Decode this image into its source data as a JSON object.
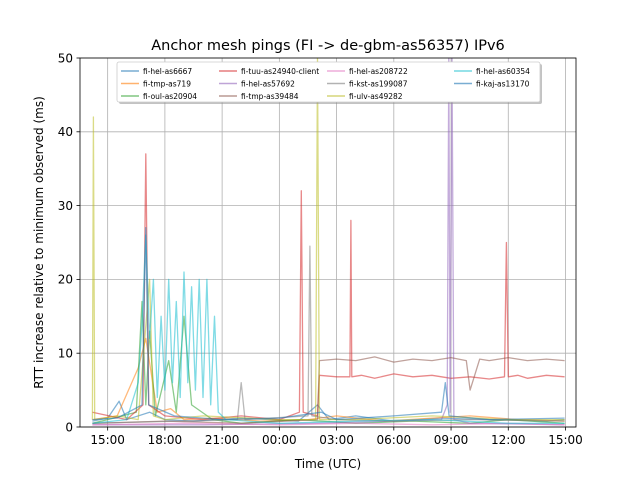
{
  "chart_data": {
    "type": "line",
    "title": "Anchor mesh pings (FI -> de-gbm-as56357) IPv6",
    "xlabel": "Time (UTC)",
    "ylabel": "RTT increase relative to minimum observed (ms)",
    "x_unit": "hours since 12:00 UTC (day 1)",
    "xlim": [
      1.55,
      27.55
    ],
    "ylim": [
      0,
      50
    ],
    "grid": true,
    "legend_position": "top-center",
    "x_ticks": [
      {
        "value": 3,
        "label": "15:00"
      },
      {
        "value": 6,
        "label": "18:00"
      },
      {
        "value": 9,
        "label": "21:00"
      },
      {
        "value": 12,
        "label": "00:00"
      },
      {
        "value": 15,
        "label": "03:00"
      },
      {
        "value": 18,
        "label": "06:00"
      },
      {
        "value": 21,
        "label": "09:00"
      },
      {
        "value": 24,
        "label": "12:00"
      },
      {
        "value": 27,
        "label": "15:00"
      }
    ],
    "y_ticks": [
      {
        "value": 0,
        "label": "0"
      },
      {
        "value": 10,
        "label": "10"
      },
      {
        "value": 20,
        "label": "20"
      },
      {
        "value": 30,
        "label": "30"
      },
      {
        "value": 40,
        "label": "40"
      },
      {
        "value": 50,
        "label": "50"
      }
    ],
    "series": [
      {
        "name": "fi-hel-as6667",
        "color": "#1f77b4",
        "points": [
          [
            2.2,
            0.8
          ],
          [
            3.0,
            1.2
          ],
          [
            3.6,
            3.5
          ],
          [
            4.0,
            1.0
          ],
          [
            5.2,
            2.0
          ],
          [
            6.0,
            1.0
          ],
          [
            7.5,
            0.8
          ],
          [
            10.0,
            1.2
          ],
          [
            13.0,
            0.8
          ],
          [
            14.0,
            3.0
          ],
          [
            14.6,
            1.0
          ],
          [
            16.0,
            1.5
          ],
          [
            18.0,
            0.8
          ],
          [
            20.5,
            1.2
          ],
          [
            23.0,
            1.0
          ],
          [
            26.0,
            0.8
          ],
          [
            26.95,
            1.0
          ]
        ]
      },
      {
        "name": "fi-tmp-as719",
        "color": "#ff7f0e",
        "points": [
          [
            2.2,
            1.0
          ],
          [
            3.5,
            1.5
          ],
          [
            4.6,
            8.0
          ],
          [
            5.0,
            12.0
          ],
          [
            5.6,
            2.0
          ],
          [
            6.3,
            2.5
          ],
          [
            7.0,
            1.0
          ],
          [
            8.5,
            1.2
          ],
          [
            11.0,
            0.8
          ],
          [
            13.5,
            1.0
          ],
          [
            15.0,
            1.5
          ],
          [
            17.5,
            0.8
          ],
          [
            20.0,
            1.2
          ],
          [
            22.0,
            1.5
          ],
          [
            24.5,
            1.0
          ],
          [
            26.95,
            0.8
          ]
        ]
      },
      {
        "name": "fi-oul-as20904",
        "color": "#2ca02c",
        "points": [
          [
            2.2,
            0.5
          ],
          [
            3.0,
            1.0
          ],
          [
            4.5,
            2.0
          ],
          [
            4.8,
            17.0
          ],
          [
            5.0,
            3.0
          ],
          [
            5.2,
            13.0
          ],
          [
            5.5,
            1.5
          ],
          [
            6.2,
            9.0
          ],
          [
            6.6,
            2.0
          ],
          [
            7.0,
            15.0
          ],
          [
            7.4,
            3.0
          ],
          [
            8.5,
            1.0
          ],
          [
            10.0,
            0.5
          ],
          [
            13.0,
            1.0
          ],
          [
            16.0,
            0.5
          ],
          [
            19.0,
            0.8
          ],
          [
            22.0,
            0.5
          ],
          [
            24.0,
            1.0
          ],
          [
            26.95,
            0.5
          ]
        ]
      },
      {
        "name": "fi-tuu-as24940-client",
        "color": "#d62728",
        "points": [
          [
            2.2,
            2.0
          ],
          [
            4.0,
            1.0
          ],
          [
            4.85,
            3.0
          ],
          [
            5.0,
            37.0
          ],
          [
            5.15,
            3.0
          ],
          [
            6.0,
            1.5
          ],
          [
            8.0,
            1.0
          ],
          [
            10.0,
            1.5
          ],
          [
            12.0,
            1.0
          ],
          [
            13.05,
            2.0
          ],
          [
            13.15,
            32.0
          ],
          [
            13.25,
            2.0
          ],
          [
            14.0,
            1.5
          ],
          [
            14.1,
            7.0
          ],
          [
            15.0,
            6.8
          ],
          [
            15.7,
            6.8
          ],
          [
            15.75,
            28.0
          ],
          [
            15.8,
            6.8
          ],
          [
            16.3,
            7.0
          ],
          [
            17.0,
            6.6
          ],
          [
            18.0,
            7.2
          ],
          [
            19.0,
            6.8
          ],
          [
            20.0,
            7.0
          ],
          [
            21.0,
            6.6
          ],
          [
            22.0,
            6.8
          ],
          [
            23.0,
            6.5
          ],
          [
            23.8,
            6.8
          ],
          [
            23.9,
            25.0
          ],
          [
            24.0,
            6.8
          ],
          [
            24.5,
            7.0
          ],
          [
            25.0,
            6.6
          ],
          [
            26.0,
            7.0
          ],
          [
            26.95,
            6.8
          ]
        ]
      },
      {
        "name": "fi-hel-as57692",
        "color": "#9467bd",
        "points": [
          [
            2.2,
            0.3
          ],
          [
            8.0,
            0.3
          ],
          [
            14.0,
            0.5
          ],
          [
            20.5,
            1.0
          ],
          [
            20.8,
            3.0
          ],
          [
            20.88,
            50.0
          ],
          [
            20.95,
            2.0
          ],
          [
            21.05,
            50.0
          ],
          [
            21.15,
            1.0
          ],
          [
            22.0,
            0.5
          ],
          [
            26.95,
            0.3
          ]
        ]
      },
      {
        "name": "fi-tmp-as39484",
        "color": "#8c564b",
        "points": [
          [
            2.2,
            0.5
          ],
          [
            6.0,
            0.8
          ],
          [
            10.0,
            0.5
          ],
          [
            14.0,
            1.0
          ],
          [
            14.1,
            9.0
          ],
          [
            15.0,
            9.2
          ],
          [
            16.0,
            9.0
          ],
          [
            17.0,
            9.5
          ],
          [
            18.0,
            8.8
          ],
          [
            19.0,
            9.2
          ],
          [
            20.0,
            9.0
          ],
          [
            21.0,
            9.4
          ],
          [
            21.8,
            9.0
          ],
          [
            22.0,
            5.0
          ],
          [
            22.5,
            9.2
          ],
          [
            23.0,
            9.0
          ],
          [
            24.0,
            9.4
          ],
          [
            25.0,
            9.0
          ],
          [
            26.0,
            9.2
          ],
          [
            26.95,
            9.0
          ]
        ]
      },
      {
        "name": "fi-hel-as208722",
        "color": "#e377c2",
        "points": [
          [
            2.2,
            0.3
          ],
          [
            7.0,
            0.5
          ],
          [
            12.0,
            0.3
          ],
          [
            16.0,
            0.5
          ],
          [
            20.0,
            0.3
          ],
          [
            24.0,
            0.5
          ],
          [
            26.95,
            0.3
          ]
        ]
      },
      {
        "name": "fi-kst-as199087",
        "color": "#7f7f7f",
        "points": [
          [
            2.2,
            0.5
          ],
          [
            9.8,
            1.0
          ],
          [
            10.0,
            6.0
          ],
          [
            10.2,
            1.0
          ],
          [
            13.5,
            1.5
          ],
          [
            13.6,
            24.5
          ],
          [
            13.7,
            1.5
          ],
          [
            15.0,
            1.0
          ],
          [
            18.0,
            0.8
          ],
          [
            22.0,
            1.0
          ],
          [
            26.95,
            0.8
          ]
        ]
      },
      {
        "name": "fi-ulv-as49282",
        "color": "#bcbd22",
        "points": [
          [
            2.2,
            1.0
          ],
          [
            2.25,
            42.0
          ],
          [
            2.32,
            1.0
          ],
          [
            3.5,
            1.5
          ],
          [
            4.6,
            1.0
          ],
          [
            5.2,
            20.0
          ],
          [
            5.4,
            1.5
          ],
          [
            6.0,
            1.0
          ],
          [
            8.0,
            1.5
          ],
          [
            12.0,
            1.0
          ],
          [
            13.9,
            1.0
          ],
          [
            14.0,
            50.0
          ],
          [
            14.1,
            1.0
          ],
          [
            16.0,
            1.0
          ],
          [
            20.0,
            1.5
          ],
          [
            24.0,
            1.0
          ],
          [
            26.95,
            1.0
          ]
        ]
      },
      {
        "name": "fi-hel-as60354",
        "color": "#17becf",
        "points": [
          [
            2.2,
            0.5
          ],
          [
            4.0,
            1.0
          ],
          [
            4.6,
            6.0
          ],
          [
            4.8,
            14.0
          ],
          [
            5.0,
            26.0
          ],
          [
            5.2,
            12.0
          ],
          [
            5.4,
            20.0
          ],
          [
            5.6,
            4.0
          ],
          [
            5.8,
            15.0
          ],
          [
            6.0,
            5.0
          ],
          [
            6.2,
            20.0
          ],
          [
            6.4,
            6.0
          ],
          [
            6.6,
            17.0
          ],
          [
            6.8,
            4.0
          ],
          [
            7.0,
            21.0
          ],
          [
            7.2,
            6.0
          ],
          [
            7.4,
            19.0
          ],
          [
            7.6,
            5.0
          ],
          [
            7.8,
            20.0
          ],
          [
            8.0,
            4.0
          ],
          [
            8.2,
            20.0
          ],
          [
            8.4,
            3.0
          ],
          [
            8.6,
            15.0
          ],
          [
            8.8,
            2.0
          ],
          [
            9.2,
            1.0
          ],
          [
            12.0,
            0.5
          ],
          [
            16.0,
            0.8
          ],
          [
            20.0,
            1.0
          ],
          [
            24.0,
            0.5
          ],
          [
            26.95,
            0.5
          ]
        ]
      },
      {
        "name": "fi-kaj-as13170",
        "color": "#1f77b4",
        "points": [
          [
            2.2,
            1.0
          ],
          [
            3.5,
            1.2
          ],
          [
            4.8,
            3.0
          ],
          [
            5.0,
            27.0
          ],
          [
            5.15,
            3.0
          ],
          [
            6.5,
            1.5
          ],
          [
            9.0,
            1.0
          ],
          [
            12.0,
            1.2
          ],
          [
            14.2,
            2.0
          ],
          [
            15.0,
            1.0
          ],
          [
            18.0,
            1.5
          ],
          [
            20.5,
            2.0
          ],
          [
            20.7,
            6.0
          ],
          [
            20.9,
            1.5
          ],
          [
            23.0,
            1.0
          ],
          [
            26.95,
            1.2
          ]
        ]
      }
    ]
  }
}
